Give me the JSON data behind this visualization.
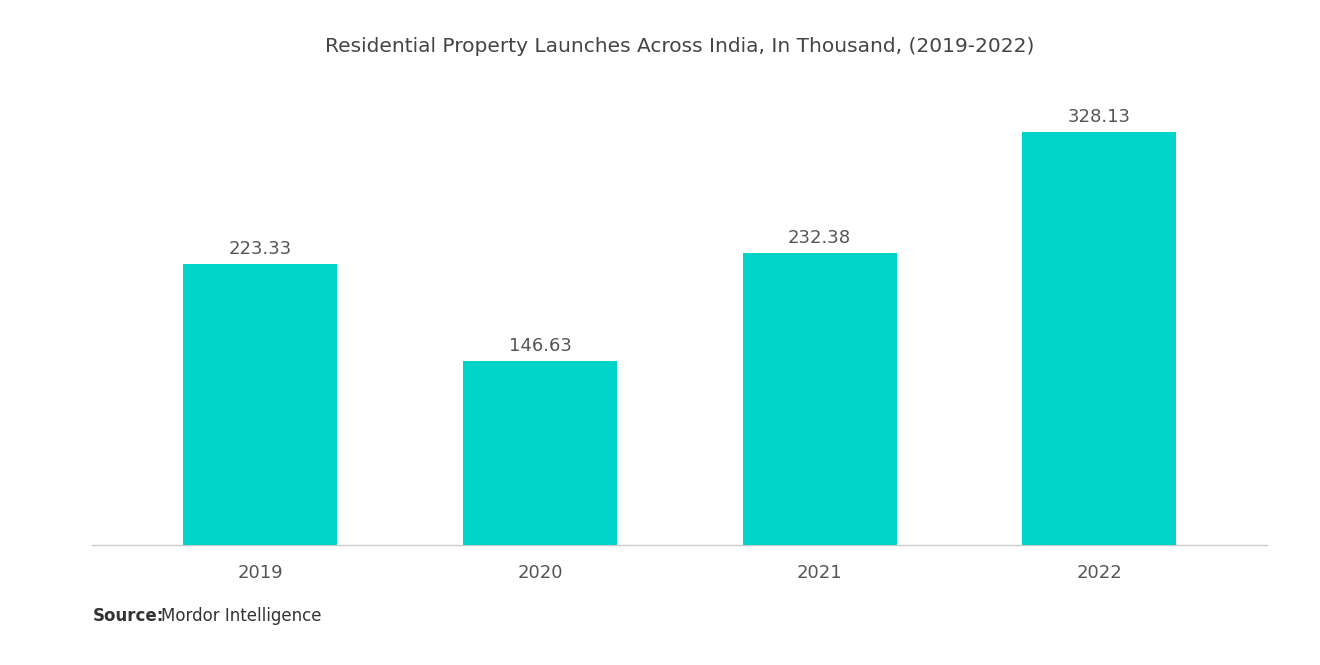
{
  "title": "Residential Property Launches Across India, In Thousand, (2019-2022)",
  "categories": [
    "2019",
    "2020",
    "2021",
    "2022"
  ],
  "values": [
    223.33,
    146.63,
    232.38,
    328.13
  ],
  "bar_color": "#00D4C8",
  "value_labels": [
    "223.33",
    "146.63",
    "232.38",
    "328.13"
  ],
  "source_bold": "Source:",
  "source_normal": "  Mordor Intelligence",
  "title_fontsize": 14.5,
  "label_fontsize": 13,
  "tick_fontsize": 13,
  "source_fontsize": 12,
  "background_color": "#ffffff",
  "bar_width": 0.55,
  "ylim": [
    0,
    370
  ],
  "label_color": "#555555"
}
